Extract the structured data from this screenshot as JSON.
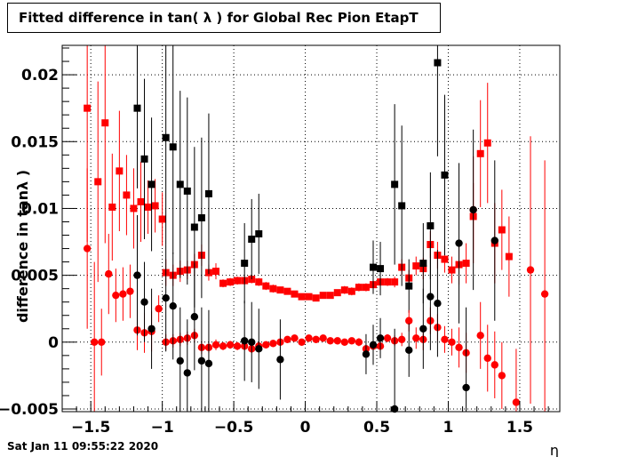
{
  "title": "Fitted difference in tan( λ ) for Global Rec Pion EtapT",
  "footer_timestamp": "Sat Jan 11 09:55:22 2020",
  "chart_data": {
    "type": "scatter",
    "title": "Fitted difference in tan( λ ) for Global Rec Pion EtapT",
    "xlabel": "η",
    "ylabel": "difference in tanλ )",
    "xlim": [
      -1.7,
      1.78
    ],
    "ylim": [
      -0.0052,
      0.0222
    ],
    "grid": true,
    "x_ticks": [
      -1.5,
      -1,
      -0.5,
      0,
      0.5,
      1,
      1.5
    ],
    "x_tick_labels": [
      "−1.5",
      "−1",
      "−0.5",
      "0",
      "0.5",
      "1",
      "1.5"
    ],
    "y_ticks": [
      -0.005,
      0,
      0.005,
      0.01,
      0.015,
      0.02
    ],
    "y_tick_labels": [
      "−0.005",
      "0",
      "0.005",
      "0.01",
      "0.015",
      "0.02"
    ],
    "colors": {
      "red": "#ff0000",
      "black": "#000000"
    },
    "series": [
      {
        "color": "#ff0000",
        "marker": "square",
        "points": [
          {
            "x": -1.525,
            "y": 0.0175,
            "e": 0.01
          },
          {
            "x": -1.45,
            "y": 0.012,
            "e": 0.0075
          },
          {
            "x": -1.4,
            "y": 0.0164,
            "e": 0.009
          },
          {
            "x": -1.35,
            "y": 0.0101,
            "e": 0.004
          },
          {
            "x": -1.3,
            "y": 0.0128,
            "e": 0.0045
          },
          {
            "x": -1.25,
            "y": 0.011,
            "e": 0.003
          },
          {
            "x": -1.2,
            "y": 0.01,
            "e": 0.003
          },
          {
            "x": -1.15,
            "y": 0.0105,
            "e": 0.003
          },
          {
            "x": -1.1,
            "y": 0.0101,
            "e": 0.002
          },
          {
            "x": -1.05,
            "y": 0.0102,
            "e": 0.002
          },
          {
            "x": -1.0,
            "y": 0.0092,
            "e": 0.002
          },
          {
            "x": -0.975,
            "y": 0.0052,
            "e": 0.001
          },
          {
            "x": -0.925,
            "y": 0.005,
            "e": 0.0008
          },
          {
            "x": -0.875,
            "y": 0.0053,
            "e": 0.0008
          },
          {
            "x": -0.825,
            "y": 0.0054,
            "e": 0.0007
          },
          {
            "x": -0.775,
            "y": 0.0058,
            "e": 0.0008
          },
          {
            "x": -0.725,
            "y": 0.0065,
            "e": 0.0008
          },
          {
            "x": -0.675,
            "y": 0.0052,
            "e": 0.0006
          },
          {
            "x": -0.625,
            "y": 0.0053,
            "e": 0.0006
          },
          {
            "x": -0.575,
            "y": 0.0044,
            "e": 0.0003
          },
          {
            "x": -0.525,
            "y": 0.0045,
            "e": 0.0003
          },
          {
            "x": -0.475,
            "y": 0.0046,
            "e": 0.0003
          },
          {
            "x": -0.425,
            "y": 0.0046,
            "e": 0.0003
          },
          {
            "x": -0.375,
            "y": 0.0047,
            "e": 0.0003
          },
          {
            "x": -0.325,
            "y": 0.0045,
            "e": 0.0003
          },
          {
            "x": -0.275,
            "y": 0.0042,
            "e": 0.0003
          },
          {
            "x": -0.225,
            "y": 0.004,
            "e": 0.0003
          },
          {
            "x": -0.175,
            "y": 0.0039,
            "e": 0.0002
          },
          {
            "x": -0.125,
            "y": 0.0038,
            "e": 0.0002
          },
          {
            "x": -0.075,
            "y": 0.0036,
            "e": 0.0002
          },
          {
            "x": -0.025,
            "y": 0.0034,
            "e": 0.0002
          },
          {
            "x": 0.025,
            "y": 0.0034,
            "e": 0.0002
          },
          {
            "x": 0.075,
            "y": 0.0033,
            "e": 0.0002
          },
          {
            "x": 0.125,
            "y": 0.0035,
            "e": 0.0002
          },
          {
            "x": 0.175,
            "y": 0.0035,
            "e": 0.0002
          },
          {
            "x": 0.225,
            "y": 0.0037,
            "e": 0.0002
          },
          {
            "x": 0.275,
            "y": 0.0039,
            "e": 0.0003
          },
          {
            "x": 0.325,
            "y": 0.0038,
            "e": 0.0003
          },
          {
            "x": 0.375,
            "y": 0.0041,
            "e": 0.0003
          },
          {
            "x": 0.425,
            "y": 0.0041,
            "e": 0.0003
          },
          {
            "x": 0.475,
            "y": 0.0043,
            "e": 0.0003
          },
          {
            "x": 0.525,
            "y": 0.0045,
            "e": 0.0003
          },
          {
            "x": 0.575,
            "y": 0.0045,
            "e": 0.0003
          },
          {
            "x": 0.625,
            "y": 0.0045,
            "e": 0.0004
          },
          {
            "x": 0.675,
            "y": 0.0056,
            "e": 0.0006
          },
          {
            "x": 0.725,
            "y": 0.0048,
            "e": 0.0006
          },
          {
            "x": 0.775,
            "y": 0.0057,
            "e": 0.0007
          },
          {
            "x": 0.825,
            "y": 0.0055,
            "e": 0.0008
          },
          {
            "x": 0.875,
            "y": 0.0073,
            "e": 0.001
          },
          {
            "x": 0.925,
            "y": 0.0065,
            "e": 0.001
          },
          {
            "x": 0.975,
            "y": 0.0062,
            "e": 0.001
          },
          {
            "x": 1.025,
            "y": 0.0054,
            "e": 0.001
          },
          {
            "x": 1.075,
            "y": 0.0058,
            "e": 0.0015
          },
          {
            "x": 1.125,
            "y": 0.0059,
            "e": 0.0015
          },
          {
            "x": 1.175,
            "y": 0.0094,
            "e": 0.0025
          },
          {
            "x": 1.225,
            "y": 0.0141,
            "e": 0.004
          },
          {
            "x": 1.275,
            "y": 0.0149,
            "e": 0.0045
          },
          {
            "x": 1.325,
            "y": 0.0074,
            "e": 0.003
          },
          {
            "x": 1.375,
            "y": 0.0084,
            "e": 0.003
          },
          {
            "x": 1.425,
            "y": 0.0064,
            "e": 0.003
          }
        ]
      },
      {
        "color": "#000000",
        "marker": "square",
        "points": [
          {
            "x": -1.175,
            "y": 0.0175,
            "e": 0.006
          },
          {
            "x": -1.125,
            "y": 0.0137,
            "e": 0.006
          },
          {
            "x": -1.075,
            "y": 0.0118,
            "e": 0.005
          },
          {
            "x": -0.975,
            "y": 0.0153,
            "e": 0.008
          },
          {
            "x": -0.925,
            "y": 0.0146,
            "e": 0.008
          },
          {
            "x": -0.875,
            "y": 0.0118,
            "e": 0.007
          },
          {
            "x": -0.825,
            "y": 0.0113,
            "e": 0.007
          },
          {
            "x": -0.775,
            "y": 0.0086,
            "e": 0.006
          },
          {
            "x": -0.725,
            "y": 0.0093,
            "e": 0.006
          },
          {
            "x": -0.675,
            "y": 0.0111,
            "e": 0.006
          },
          {
            "x": -0.425,
            "y": 0.0059,
            "e": 0.003
          },
          {
            "x": -0.375,
            "y": 0.0077,
            "e": 0.003
          },
          {
            "x": -0.325,
            "y": 0.0081,
            "e": 0.003
          },
          {
            "x": 0.475,
            "y": 0.0056,
            "e": 0.002
          },
          {
            "x": 0.525,
            "y": 0.0055,
            "e": 0.002
          },
          {
            "x": 0.625,
            "y": 0.0118,
            "e": 0.006
          },
          {
            "x": 0.675,
            "y": 0.0102,
            "e": 0.006
          },
          {
            "x": 0.725,
            "y": 0.0042,
            "e": 0.002
          },
          {
            "x": 0.825,
            "y": 0.0059,
            "e": 0.003
          },
          {
            "x": 0.875,
            "y": 0.0087,
            "e": 0.004
          },
          {
            "x": 0.925,
            "y": 0.0209,
            "e": 0.007
          },
          {
            "x": 0.975,
            "y": 0.0125,
            "e": 0.006
          }
        ]
      },
      {
        "color": "#ff0000",
        "marker": "circle",
        "points": [
          {
            "x": -1.525,
            "y": 0.007,
            "e": 0.006
          },
          {
            "x": -1.475,
            "y": 0.0,
            "e": 0.006
          },
          {
            "x": -1.425,
            "y": 0.0,
            "e": 0.0025
          },
          {
            "x": -1.375,
            "y": 0.0051,
            "e": 0.003
          },
          {
            "x": -1.325,
            "y": 0.0035,
            "e": 0.002
          },
          {
            "x": -1.275,
            "y": 0.0036,
            "e": 0.002
          },
          {
            "x": -1.225,
            "y": 0.0038,
            "e": 0.002
          },
          {
            "x": -1.175,
            "y": 0.0009,
            "e": 0.0015
          },
          {
            "x": -1.125,
            "y": 0.0007,
            "e": 0.0015
          },
          {
            "x": -1.075,
            "y": 0.0008,
            "e": 0.0015
          },
          {
            "x": -1.025,
            "y": 0.0025,
            "e": 0.001
          },
          {
            "x": -0.975,
            "y": 0.0,
            "e": 0.0006
          },
          {
            "x": -0.925,
            "y": 0.0001,
            "e": 0.0005
          },
          {
            "x": -0.875,
            "y": 0.0002,
            "e": 0.0005
          },
          {
            "x": -0.825,
            "y": 0.0003,
            "e": 0.0005
          },
          {
            "x": -0.775,
            "y": 0.0005,
            "e": 0.0005
          },
          {
            "x": -0.725,
            "y": -0.0004,
            "e": 0.0005
          },
          {
            "x": -0.675,
            "y": -0.0004,
            "e": 0.0004
          },
          {
            "x": -0.625,
            "y": -0.0002,
            "e": 0.0004
          },
          {
            "x": -0.575,
            "y": -0.0003,
            "e": 0.0003
          },
          {
            "x": -0.525,
            "y": -0.0002,
            "e": 0.0003
          },
          {
            "x": -0.475,
            "y": -0.0003,
            "e": 0.0003
          },
          {
            "x": -0.425,
            "y": -0.0003,
            "e": 0.0003
          },
          {
            "x": -0.375,
            "y": -0.0005,
            "e": 0.0003
          },
          {
            "x": -0.325,
            "y": -0.0003,
            "e": 0.0003
          },
          {
            "x": -0.275,
            "y": -0.0002,
            "e": 0.0002
          },
          {
            "x": -0.225,
            "y": -0.0001,
            "e": 0.0002
          },
          {
            "x": -0.175,
            "y": 0.0,
            "e": 0.0002
          },
          {
            "x": -0.125,
            "y": 0.0002,
            "e": 0.0002
          },
          {
            "x": -0.075,
            "y": 0.0003,
            "e": 0.0002
          },
          {
            "x": -0.025,
            "y": 0.0,
            "e": 0.0002
          },
          {
            "x": 0.025,
            "y": 0.0003,
            "e": 0.0002
          },
          {
            "x": 0.075,
            "y": 0.0002,
            "e": 0.0002
          },
          {
            "x": 0.125,
            "y": 0.0003,
            "e": 0.0002
          },
          {
            "x": 0.175,
            "y": 0.0001,
            "e": 0.0002
          },
          {
            "x": 0.225,
            "y": 0.0001,
            "e": 0.0002
          },
          {
            "x": 0.275,
            "y": 0.0,
            "e": 0.0002
          },
          {
            "x": 0.325,
            "y": 0.0001,
            "e": 0.0002
          },
          {
            "x": 0.375,
            "y": 0.0,
            "e": 0.0003
          },
          {
            "x": 0.425,
            "y": -0.0005,
            "e": 0.0003
          },
          {
            "x": 0.475,
            "y": -0.0003,
            "e": 0.0003
          },
          {
            "x": 0.525,
            "y": -0.0003,
            "e": 0.0003
          },
          {
            "x": 0.575,
            "y": 0.0003,
            "e": 0.0003
          },
          {
            "x": 0.625,
            "y": 0.0001,
            "e": 0.0004
          },
          {
            "x": 0.675,
            "y": 0.0002,
            "e": 0.0005
          },
          {
            "x": 0.725,
            "y": 0.0016,
            "e": 0.0008
          },
          {
            "x": 0.775,
            "y": 0.0003,
            "e": 0.0008
          },
          {
            "x": 0.825,
            "y": 0.0002,
            "e": 0.0008
          },
          {
            "x": 0.875,
            "y": 0.0016,
            "e": 0.001
          },
          {
            "x": 0.925,
            "y": 0.0011,
            "e": 0.001
          },
          {
            "x": 0.975,
            "y": 0.0002,
            "e": 0.001
          },
          {
            "x": 1.025,
            "y": 0.0,
            "e": 0.001
          },
          {
            "x": 1.075,
            "y": -0.0004,
            "e": 0.0015
          },
          {
            "x": 1.125,
            "y": -0.0008,
            "e": 0.0015
          },
          {
            "x": 1.175,
            "y": 0.0099,
            "e": 0.004
          },
          {
            "x": 1.225,
            "y": 0.0005,
            "e": 0.0025
          },
          {
            "x": 1.275,
            "y": -0.0012,
            "e": 0.0025
          },
          {
            "x": 1.325,
            "y": -0.0017,
            "e": 0.0025
          },
          {
            "x": 1.375,
            "y": -0.0025,
            "e": 0.0025
          },
          {
            "x": 1.475,
            "y": -0.0045,
            "e": 0.004
          },
          {
            "x": 1.575,
            "y": 0.0054,
            "e": 0.01
          },
          {
            "x": 1.675,
            "y": 0.0036,
            "e": 0.01
          }
        ]
      },
      {
        "color": "#000000",
        "marker": "circle",
        "points": [
          {
            "x": -1.175,
            "y": 0.005,
            "e": 0.0045
          },
          {
            "x": -1.125,
            "y": 0.003,
            "e": 0.003
          },
          {
            "x": -1.075,
            "y": 0.001,
            "e": 0.003
          },
          {
            "x": -0.975,
            "y": 0.0033,
            "e": 0.004
          },
          {
            "x": -0.925,
            "y": 0.0027,
            "e": 0.004
          },
          {
            "x": -0.875,
            "y": -0.0014,
            "e": 0.004
          },
          {
            "x": -0.825,
            "y": -0.0023,
            "e": 0.004
          },
          {
            "x": -0.775,
            "y": 0.0019,
            "e": 0.004
          },
          {
            "x": -0.725,
            "y": -0.0014,
            "e": 0.004
          },
          {
            "x": -0.675,
            "y": -0.0016,
            "e": 0.004
          },
          {
            "x": -0.425,
            "y": 0.0001,
            "e": 0.003
          },
          {
            "x": -0.375,
            "y": 0.0,
            "e": 0.003
          },
          {
            "x": -0.325,
            "y": -0.0005,
            "e": 0.003
          },
          {
            "x": -0.175,
            "y": -0.0013,
            "e": 0.003
          },
          {
            "x": 0.425,
            "y": -0.0009,
            "e": 0.0015
          },
          {
            "x": 0.475,
            "y": -0.0002,
            "e": 0.0015
          },
          {
            "x": 0.525,
            "y": 0.0003,
            "e": 0.0015
          },
          {
            "x": 0.625,
            "y": -0.005,
            "e": 0.006
          },
          {
            "x": 0.725,
            "y": -0.0006,
            "e": 0.002
          },
          {
            "x": 0.825,
            "y": 0.001,
            "e": 0.003
          },
          {
            "x": 0.875,
            "y": 0.0034,
            "e": 0.004
          },
          {
            "x": 0.925,
            "y": 0.0029,
            "e": 0.004
          },
          {
            "x": 1.075,
            "y": 0.0074,
            "e": 0.006
          },
          {
            "x": 1.125,
            "y": -0.0034,
            "e": 0.006
          },
          {
            "x": 1.175,
            "y": 0.0099,
            "e": 0.006
          },
          {
            "x": 1.325,
            "y": 0.0076,
            "e": 0.006
          }
        ]
      }
    ]
  }
}
